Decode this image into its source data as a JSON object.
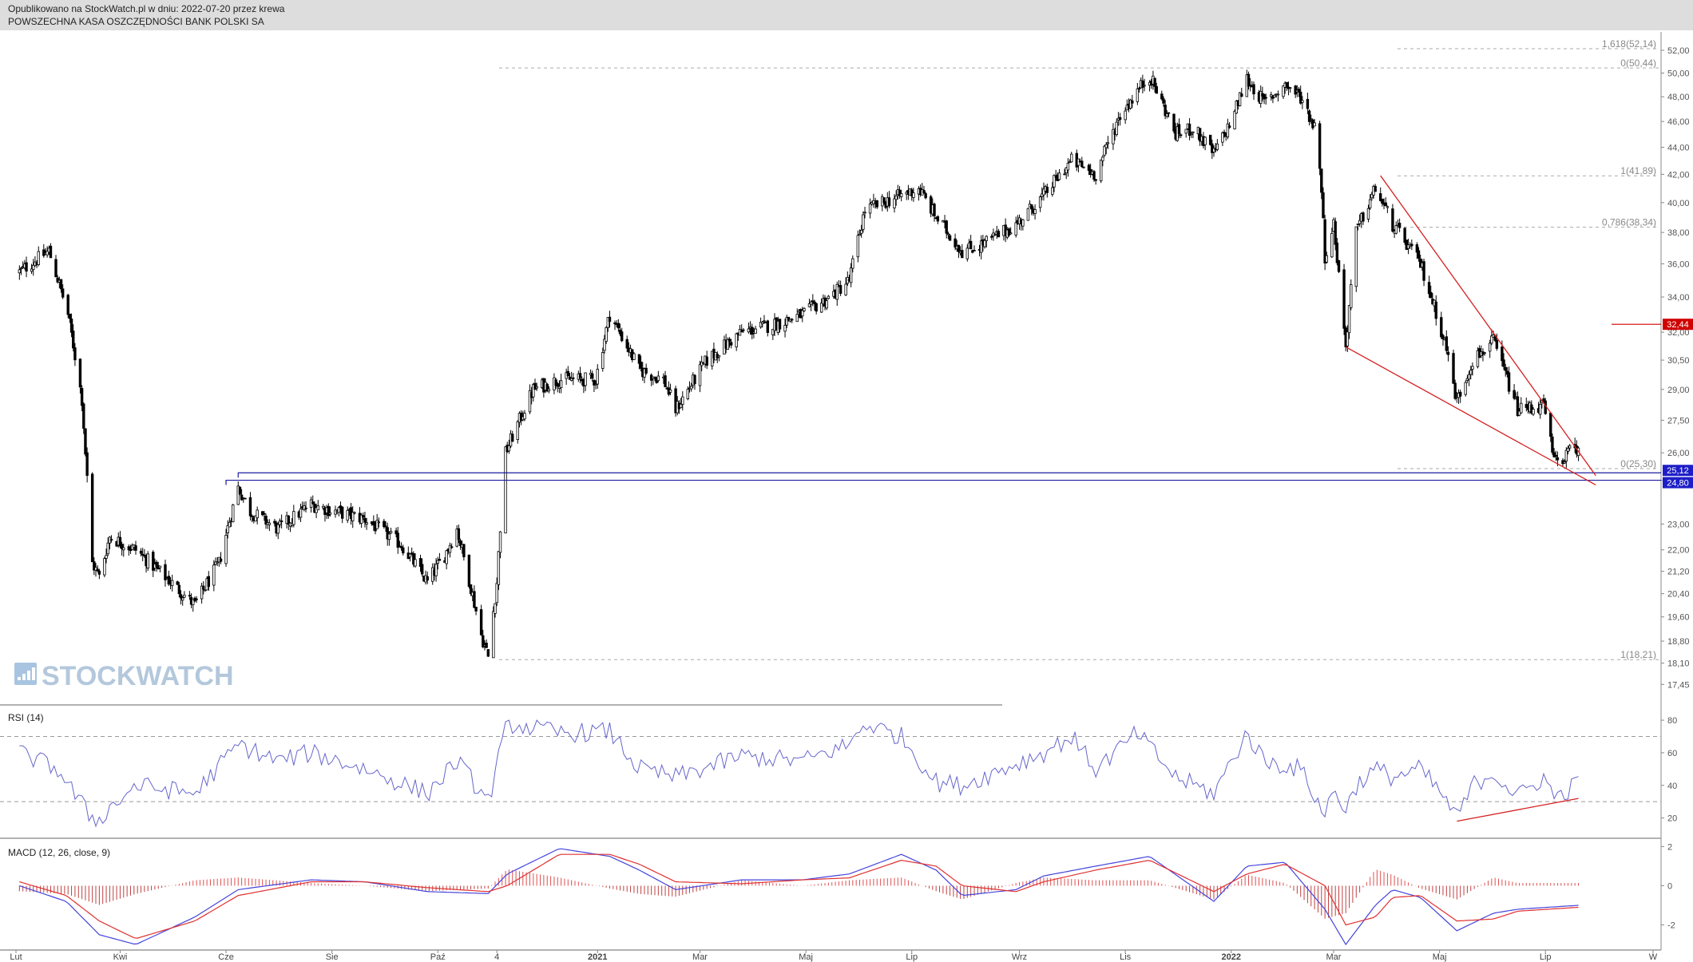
{
  "header": {
    "published": "Opublikowano na StockWatch.pl w dniu: 2022-07-20 przez krewa",
    "instrument": "POWSZECHNA KASA OSZCZĘDNOŚCI BANK POLSKI SA"
  },
  "watermark": "STOCKWATCH",
  "colors": {
    "candle": "#000000",
    "trendline": "#d42020",
    "support": "#1c1c9e",
    "rsi_line": "#6666cc",
    "macd_line": "#4444dd",
    "signal_line": "#e03030",
    "hist_pos": "#e05050",
    "hist_neg": "#c04040",
    "price_tag_red": "#d00000",
    "price_tag_blue": "#1e1ec8"
  },
  "chart_data": [
    {
      "type": "candlestick",
      "title": "",
      "x_tick_labels": [
        "Lut",
        "Kwi",
        "Cze",
        "Sie",
        "Paź",
        "4",
        "2021",
        "Mar",
        "Maj",
        "Lip",
        "Wrz",
        "Lis",
        "2022",
        "Mar",
        "Maj",
        "Lip",
        "W"
      ],
      "y_tick_labels": [
        "52,00",
        "50,00",
        "48,00",
        "46,00",
        "44,00",
        "42,00",
        "40,00",
        "38,00",
        "36,00",
        "34,00",
        "32,00",
        "30,50",
        "29,00",
        "27,50",
        "26,00",
        "24,80",
        "23,00",
        "22,00",
        "21,20",
        "20,40",
        "19,60",
        "18,80",
        "18,10",
        "17,45"
      ],
      "price_axis_levels": [
        52.0,
        50.0,
        48.0,
        46.0,
        44.0,
        42.0,
        40.0,
        38.0,
        36.0,
        34.0,
        32.0,
        30.5,
        29.0,
        27.5,
        26.0,
        24.8,
        23.0,
        22.0,
        21.2,
        20.4,
        19.6,
        18.8,
        18.1,
        17.45
      ],
      "ylim": [
        17.1,
        53.3
      ],
      "scale": "log",
      "series_points": [
        [
          "2020-02-03",
          35.5
        ],
        [
          "2020-02-20",
          36.8
        ],
        [
          "2020-03-02",
          33.0
        ],
        [
          "2020-03-10",
          28.5
        ],
        [
          "2020-03-12",
          26.0
        ],
        [
          "2020-03-16",
          21.5
        ],
        [
          "2020-03-20",
          21.0
        ],
        [
          "2020-03-26",
          22.5
        ],
        [
          "2020-04-10",
          22.0
        ],
        [
          "2020-05-14",
          20.0
        ],
        [
          "2020-05-28",
          21.5
        ],
        [
          "2020-06-08",
          24.5
        ],
        [
          "2020-06-15",
          23.5
        ],
        [
          "2020-07-01",
          22.8
        ],
        [
          "2020-07-20",
          23.8
        ],
        [
          "2020-08-03",
          23.5
        ],
        [
          "2020-08-20",
          23.2
        ],
        [
          "2020-09-10",
          22.2
        ],
        [
          "2020-09-25",
          20.8
        ],
        [
          "2020-10-05",
          21.8
        ],
        [
          "2020-10-12",
          22.8
        ],
        [
          "2020-10-26",
          19.0
        ],
        [
          "2020-10-30",
          18.3
        ],
        [
          "2020-11-04",
          20.8
        ],
        [
          "2020-11-09",
          26.0
        ],
        [
          "2020-11-25",
          29.0
        ],
        [
          "2020-12-10",
          29.5
        ],
        [
          "2020-12-31",
          29.5
        ],
        [
          "2021-01-08",
          33.0
        ],
        [
          "2021-01-25",
          30.0
        ],
        [
          "2021-02-08",
          29.5
        ],
        [
          "2021-02-15",
          28.0
        ],
        [
          "2021-03-05",
          30.5
        ],
        [
          "2021-03-25",
          32.0
        ],
        [
          "2021-04-15",
          32.5
        ],
        [
          "2021-04-29",
          33.0
        ],
        [
          "2021-05-15",
          34.0
        ],
        [
          "2021-05-26",
          35.0
        ],
        [
          "2021-06-04",
          39.5
        ],
        [
          "2021-06-25",
          40.5
        ],
        [
          "2021-07-05",
          41.0
        ],
        [
          "2021-07-15",
          39.0
        ],
        [
          "2021-07-30",
          36.8
        ],
        [
          "2021-08-10",
          37.2
        ],
        [
          "2021-08-30",
          38.5
        ],
        [
          "2021-09-15",
          40.5
        ],
        [
          "2021-10-01",
          43.0
        ],
        [
          "2021-10-15",
          42.0
        ],
        [
          "2021-10-29",
          46.5
        ],
        [
          "2021-11-08",
          48.5
        ],
        [
          "2021-11-15",
          49.8
        ],
        [
          "2021-11-30",
          45.0
        ],
        [
          "2021-12-10",
          45.5
        ],
        [
          "2021-12-22",
          43.5
        ],
        [
          "2022-01-01",
          46.0
        ],
        [
          "2022-01-10",
          49.5
        ],
        [
          "2022-01-20",
          47.5
        ],
        [
          "2022-02-01",
          49.0
        ],
        [
          "2022-02-10",
          48.0
        ],
        [
          "2022-02-20",
          45.0
        ],
        [
          "2022-02-24",
          36.5
        ],
        [
          "2022-03-01",
          38.5
        ],
        [
          "2022-03-08",
          31.2
        ],
        [
          "2022-03-14",
          38.0
        ],
        [
          "2022-03-25",
          41.0
        ],
        [
          "2022-04-04",
          38.5
        ],
        [
          "2022-04-20",
          36.0
        ],
        [
          "2022-05-04",
          31.5
        ],
        [
          "2022-05-11",
          28.4
        ],
        [
          "2022-05-20",
          30.5
        ],
        [
          "2022-06-01",
          31.5
        ],
        [
          "2022-06-15",
          28.0
        ],
        [
          "2022-06-30",
          28.2
        ],
        [
          "2022-07-06",
          25.6
        ],
        [
          "2022-07-11",
          25.8
        ],
        [
          "2022-07-20",
          26.3
        ]
      ],
      "fibonacci_levels": [
        {
          "label": "1,618(52,14)",
          "value": 52.14
        },
        {
          "label": "0(50,44)",
          "value": 50.44
        },
        {
          "label": "1(41,89)",
          "value": 41.89
        },
        {
          "label": "0,786(38,34)",
          "value": 38.34
        },
        {
          "label": "0(25,30)",
          "value": 25.3
        },
        {
          "label": "1(18,21)",
          "value": 18.21
        }
      ],
      "support_lines": [
        {
          "value": 25.12,
          "start": "2020-06-08",
          "end": "2022-08-15"
        },
        {
          "value": 24.8,
          "start": "2020-06-01",
          "end": "2022-08-15"
        }
      ],
      "trendlines": [
        {
          "from": [
            "2022-03-28",
            41.9
          ],
          "to": [
            "2022-07-30",
            25.0
          ]
        },
        {
          "from": [
            "2022-03-08",
            31.2
          ],
          "to": [
            "2022-07-30",
            24.6
          ]
        }
      ],
      "price_labels": [
        {
          "text": "32,44",
          "value": 32.44,
          "color": "red"
        },
        {
          "text": "25,12",
          "value": 25.12,
          "color": "blue"
        },
        {
          "text": "24,80",
          "value": 24.8,
          "color": "blue"
        }
      ]
    },
    {
      "type": "line",
      "name": "RSI (14)",
      "y_tick_labels": [
        "80",
        "60",
        "40",
        "20"
      ],
      "ylim": [
        10,
        82
      ],
      "guide_levels": [
        70,
        30
      ],
      "points": [
        [
          "2020-02-03",
          60
        ],
        [
          "2020-02-25",
          50
        ],
        [
          "2020-03-12",
          25
        ],
        [
          "2020-03-18",
          18
        ],
        [
          "2020-04-10",
          40
        ],
        [
          "2020-05-14",
          35
        ],
        [
          "2020-06-08",
          65
        ],
        [
          "2020-07-01",
          55
        ],
        [
          "2020-07-20",
          60
        ],
        [
          "2020-08-20",
          50
        ],
        [
          "2020-09-25",
          35
        ],
        [
          "2020-10-12",
          55
        ],
        [
          "2020-10-30",
          30
        ],
        [
          "2020-11-10",
          78
        ],
        [
          "2020-12-10",
          72
        ],
        [
          "2021-01-08",
          73
        ],
        [
          "2021-01-25",
          50
        ],
        [
          "2021-02-15",
          45
        ],
        [
          "2021-03-25",
          58
        ],
        [
          "2021-04-29",
          55
        ],
        [
          "2021-05-26",
          65
        ],
        [
          "2021-06-04",
          78
        ],
        [
          "2021-06-25",
          70
        ],
        [
          "2021-07-15",
          42
        ],
        [
          "2021-07-30",
          40
        ],
        [
          "2021-09-15",
          60
        ],
        [
          "2021-10-01",
          70
        ],
        [
          "2021-10-15",
          50
        ],
        [
          "2021-11-08",
          72
        ],
        [
          "2021-11-30",
          45
        ],
        [
          "2021-12-22",
          35
        ],
        [
          "2022-01-10",
          72
        ],
        [
          "2022-01-20",
          55
        ],
        [
          "2022-02-10",
          50
        ],
        [
          "2022-02-24",
          22
        ],
        [
          "2022-03-01",
          38
        ],
        [
          "2022-03-08",
          25
        ],
        [
          "2022-03-14",
          40
        ],
        [
          "2022-03-25",
          50
        ],
        [
          "2022-04-04",
          45
        ],
        [
          "2022-04-20",
          50
        ],
        [
          "2022-05-04",
          32
        ],
        [
          "2022-05-11",
          20
        ],
        [
          "2022-05-20",
          40
        ],
        [
          "2022-06-01",
          48
        ],
        [
          "2022-06-15",
          33
        ],
        [
          "2022-06-30",
          45
        ],
        [
          "2022-07-06",
          33
        ],
        [
          "2022-07-11",
          35
        ],
        [
          "2022-07-20",
          42
        ]
      ],
      "divergence_line": {
        "from": [
          "2022-05-11",
          18
        ],
        "to": [
          "2022-07-20",
          32
        ]
      }
    },
    {
      "type": "line",
      "name": "MACD (12, 26, close, 9)",
      "y_tick_labels": [
        "2",
        "0",
        "-2"
      ],
      "ylim": [
        -3.2,
        2.3
      ],
      "macd": [
        [
          "2020-02-03",
          0.0
        ],
        [
          "2020-03-01",
          -0.8
        ],
        [
          "2020-03-20",
          -2.5
        ],
        [
          "2020-04-10",
          -3.0
        ],
        [
          "2020-05-14",
          -1.6
        ],
        [
          "2020-06-08",
          -0.2
        ],
        [
          "2020-07-20",
          0.3
        ],
        [
          "2020-08-20",
          0.2
        ],
        [
          "2020-09-25",
          -0.3
        ],
        [
          "2020-10-30",
          -0.4
        ],
        [
          "2020-11-10",
          0.6
        ],
        [
          "2020-12-10",
          1.9
        ],
        [
          "2021-01-08",
          1.5
        ],
        [
          "2021-01-25",
          0.8
        ],
        [
          "2021-02-15",
          -0.2
        ],
        [
          "2021-03-25",
          0.3
        ],
        [
          "2021-04-29",
          0.3
        ],
        [
          "2021-05-26",
          0.6
        ],
        [
          "2021-06-25",
          1.6
        ],
        [
          "2021-07-15",
          0.8
        ],
        [
          "2021-07-30",
          -0.5
        ],
        [
          "2021-08-30",
          -0.2
        ],
        [
          "2021-09-15",
          0.5
        ],
        [
          "2021-10-15",
          1.0
        ],
        [
          "2021-11-15",
          1.5
        ],
        [
          "2021-12-22",
          -0.8
        ],
        [
          "2022-01-10",
          1.0
        ],
        [
          "2022-02-01",
          1.2
        ],
        [
          "2022-02-24",
          -1.2
        ],
        [
          "2022-03-08",
          -3.0
        ],
        [
          "2022-03-25",
          -1.0
        ],
        [
          "2022-04-04",
          -0.2
        ],
        [
          "2022-04-20",
          -0.6
        ],
        [
          "2022-05-11",
          -2.3
        ],
        [
          "2022-06-01",
          -1.4
        ],
        [
          "2022-06-15",
          -1.2
        ],
        [
          "2022-07-20",
          -1.0
        ]
      ],
      "signal": [
        [
          "2020-02-03",
          0.2
        ],
        [
          "2020-03-01",
          -0.5
        ],
        [
          "2020-03-20",
          -1.8
        ],
        [
          "2020-04-10",
          -2.7
        ],
        [
          "2020-05-14",
          -1.8
        ],
        [
          "2020-06-08",
          -0.5
        ],
        [
          "2020-07-20",
          0.2
        ],
        [
          "2020-08-20",
          0.2
        ],
        [
          "2020-09-25",
          -0.1
        ],
        [
          "2020-10-30",
          -0.3
        ],
        [
          "2020-11-10",
          0.0
        ],
        [
          "2020-12-10",
          1.6
        ],
        [
          "2021-01-08",
          1.6
        ],
        [
          "2021-01-25",
          1.1
        ],
        [
          "2021-02-15",
          0.2
        ],
        [
          "2021-03-25",
          0.1
        ],
        [
          "2021-04-29",
          0.3
        ],
        [
          "2021-05-26",
          0.4
        ],
        [
          "2021-06-25",
          1.3
        ],
        [
          "2021-07-15",
          1.0
        ],
        [
          "2021-07-30",
          0.0
        ],
        [
          "2021-08-30",
          -0.3
        ],
        [
          "2021-09-15",
          0.2
        ],
        [
          "2021-10-15",
          0.8
        ],
        [
          "2021-11-15",
          1.3
        ],
        [
          "2021-12-22",
          -0.3
        ],
        [
          "2022-01-10",
          0.6
        ],
        [
          "2022-02-01",
          1.1
        ],
        [
          "2022-02-24",
          0.0
        ],
        [
          "2022-03-08",
          -2.0
        ],
        [
          "2022-03-25",
          -1.6
        ],
        [
          "2022-04-04",
          -0.6
        ],
        [
          "2022-04-20",
          -0.5
        ],
        [
          "2022-05-11",
          -1.8
        ],
        [
          "2022-06-01",
          -1.7
        ],
        [
          "2022-06-15",
          -1.3
        ],
        [
          "2022-07-20",
          -1.1
        ]
      ]
    }
  ]
}
